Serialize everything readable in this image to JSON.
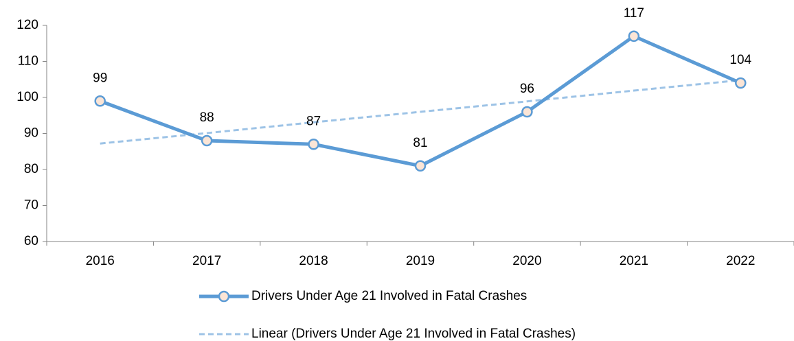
{
  "chart_data": {
    "type": "line",
    "categories": [
      "2016",
      "2017",
      "2018",
      "2019",
      "2020",
      "2021",
      "2022"
    ],
    "series": [
      {
        "name": "Drivers Under Age 21 Involved in Fatal Crashes",
        "color": "#5b9bd5",
        "marker_fill": "#fbe5d6",
        "style": "solid",
        "markers": true,
        "data_labels": true,
        "values": [
          99,
          88,
          87,
          81,
          96,
          117,
          104
        ]
      },
      {
        "name": "Linear (Drivers Under Age 21 Involved in Fatal Crashes)",
        "color": "#9dc3e6",
        "style": "dashed",
        "markers": false,
        "data_labels": false,
        "values": [
          87.2,
          90.1,
          93.1,
          96.0,
          98.9,
          101.9,
          104.8
        ]
      }
    ],
    "ylim": [
      60,
      120
    ],
    "yticks": [
      60,
      70,
      80,
      90,
      100,
      110,
      120
    ],
    "grid": false,
    "legend": "bottom"
  }
}
